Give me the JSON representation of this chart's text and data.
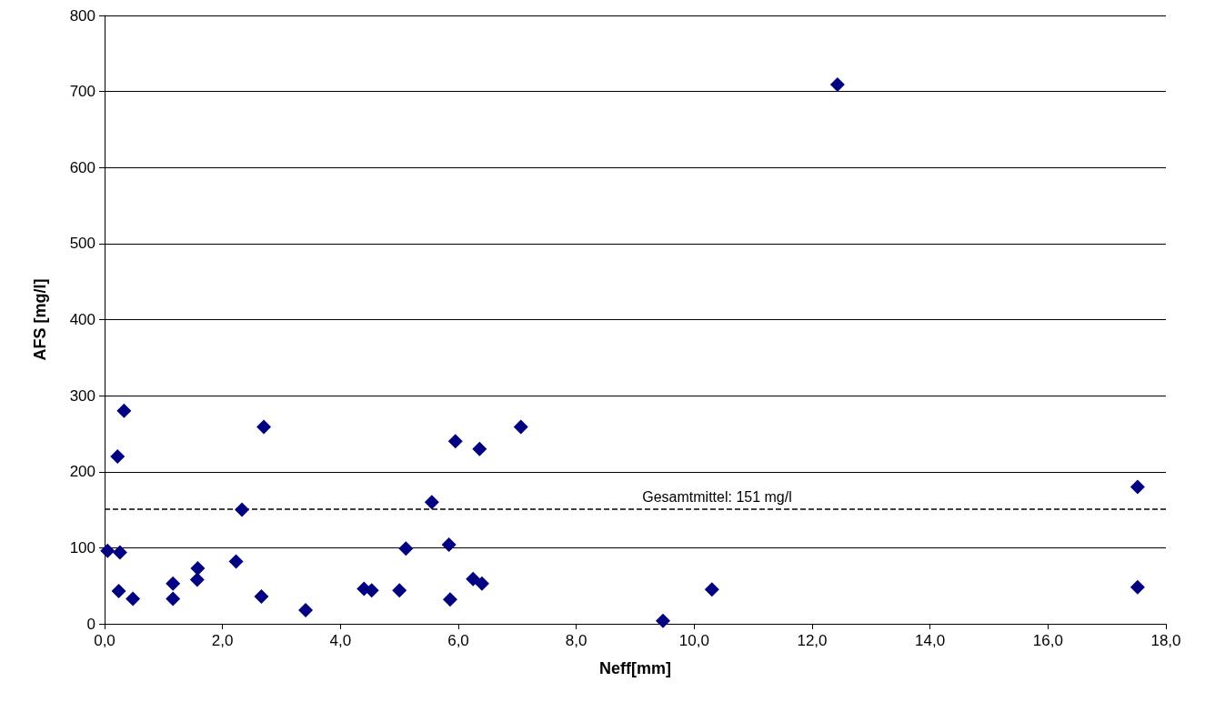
{
  "chart_data": {
    "type": "scatter",
    "xlabel": "Neff[mm]",
    "ylabel": "AFS [mg/l]",
    "x": [
      0.05,
      0.26,
      0.24,
      0.48,
      0.22,
      0.33,
      1.16,
      1.16,
      1.58,
      1.57,
      2.23,
      2.33,
      2.66,
      2.7,
      3.41,
      4.4,
      4.53,
      5.0,
      5.11,
      5.55,
      5.84,
      5.86,
      5.95,
      6.25,
      6.4,
      6.36,
      7.06,
      9.47,
      10.3,
      12.43,
      17.52,
      17.52
    ],
    "series": [
      {
        "color": "#000080",
        "values": [
          96,
          94,
          43,
          33,
          220,
          280,
          53,
          33,
          73,
          58,
          82,
          150,
          36,
          259,
          18,
          46,
          44,
          44,
          99,
          160,
          104,
          32,
          240,
          59,
          53,
          230,
          259,
          4,
          45,
          709,
          180,
          48
        ]
      }
    ],
    "xlim": [
      0,
      18
    ],
    "xticks": [
      {
        "value": 0,
        "label": "0,0"
      },
      {
        "value": 2,
        "label": "2,0"
      },
      {
        "value": 4,
        "label": "4,0"
      },
      {
        "value": 6,
        "label": "6,0"
      },
      {
        "value": 8,
        "label": "8,0"
      },
      {
        "value": 10,
        "label": "10,0"
      },
      {
        "value": 12,
        "label": "12,0"
      },
      {
        "value": 14,
        "label": "14,0"
      },
      {
        "value": 16,
        "label": "16,0"
      },
      {
        "value": 18,
        "label": "18,0"
      }
    ],
    "ylim": [
      0,
      800
    ],
    "yticks": [
      0,
      100,
      200,
      300,
      400,
      500,
      600,
      700,
      800
    ],
    "ref_lines": [
      {
        "axis": "y",
        "value": 151,
        "label": "Gesamtmittel: 151 mg/l",
        "color": "#000000",
        "line_style": "dashed"
      }
    ],
    "grid": "y",
    "marker": "diamond"
  }
}
